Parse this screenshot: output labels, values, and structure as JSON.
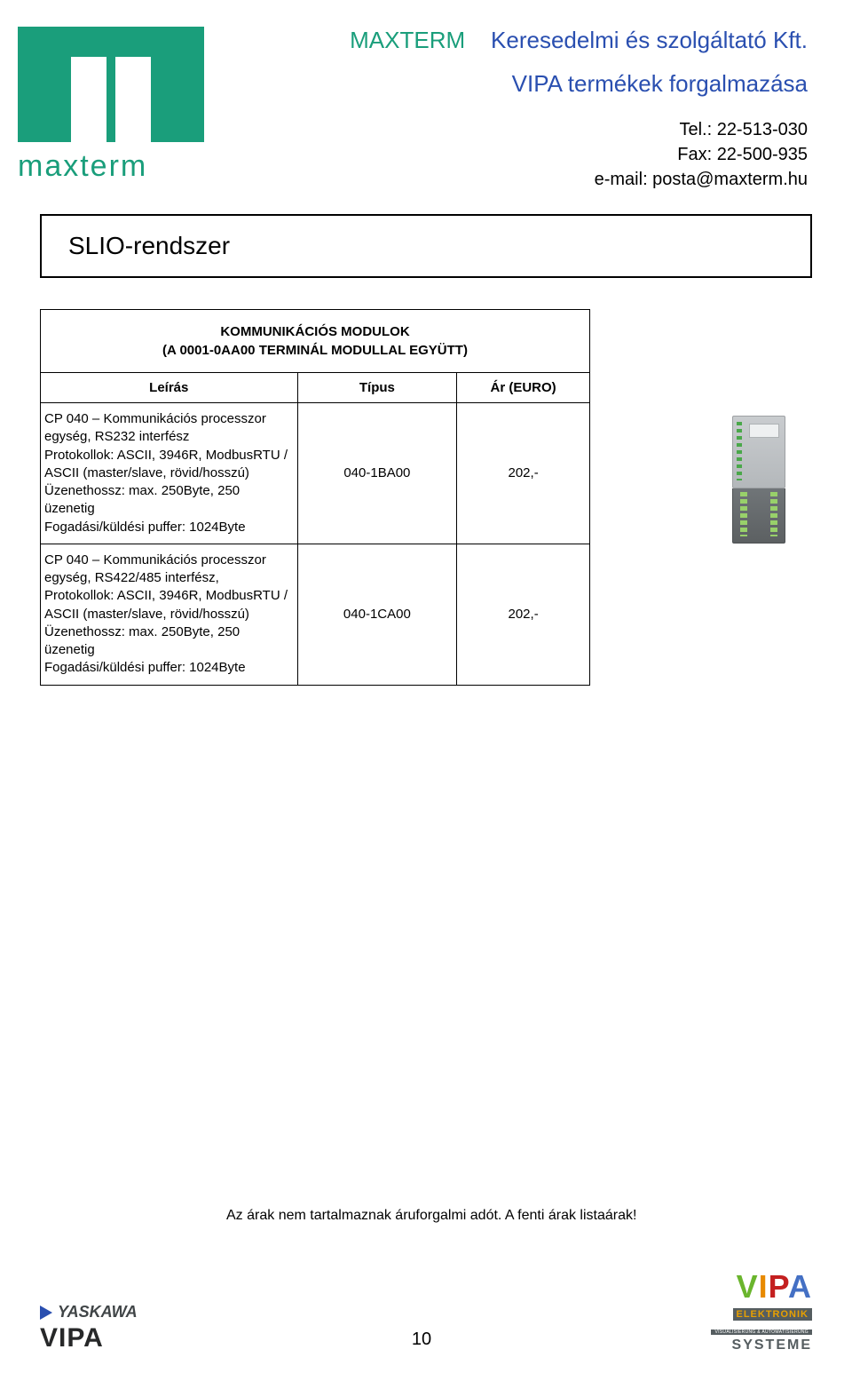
{
  "header": {
    "logo_text": "maxterm",
    "company_green": "MAXTERM",
    "company_blue": "Keresedelmi és szolgáltató Kft.",
    "subtitle": "VIPA termékek forgalmazása",
    "tel": "Tel.: 22-513-030",
    "fax": "Fax: 22-500-935",
    "email": "e-mail: posta@maxterm.hu"
  },
  "section_title": "SLIO-rendszer",
  "table": {
    "title_l1": "KOMMUNIKÁCIÓS MODULOK",
    "title_l2": "(A 0001-0AA00 TERMINÁL MODULLAL EGYÜTT)",
    "columns": [
      "Leírás",
      "Típus",
      "Ár (EURO)"
    ],
    "rows": [
      {
        "desc": "CP 040 – Kommunikációs processzor egység, RS232 interfész\nProtokollok: ASCII, 3946R, ModbusRTU / ASCII (master/slave, rövid/hosszú)\nÜzenethossz: max. 250Byte, 250 üzenetig\nFogadási/küldési puffer: 1024Byte",
        "type": "040-1BA00",
        "price": "202,-"
      },
      {
        "desc": "CP 040 – Kommunikációs processzor egység, RS422/485 interfész,\nProtokollok: ASCII, 3946R, ModbusRTU / ASCII (master/slave, rövid/hosszú)\nÜzenethossz: max. 250Byte, 250 üzenetig\nFogadási/küldési puffer: 1024Byte",
        "type": "040-1CA00",
        "price": "202,-"
      }
    ]
  },
  "footer": {
    "note": "Az árak nem tartalmaznak áruforgalmi adót. A fenti árak listaárak!",
    "yaskawa": "YASKAWA",
    "vipa_small": "VIPA",
    "page_number": "10",
    "vipa_elektronik": "ELEKTRONIK",
    "vipa_tag": "VISUALISIERUNG & AUTOMATISIERUNG",
    "vipa_systeme": "SYSTEME"
  }
}
